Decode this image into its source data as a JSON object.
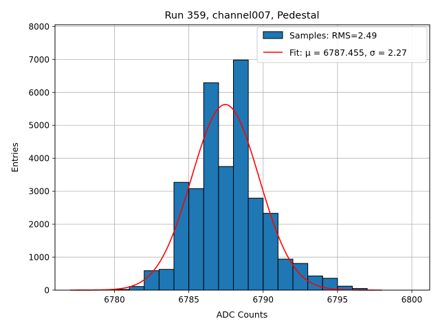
{
  "chart_data": {
    "type": "bar",
    "title": "Run 359, channel007, Pedestal",
    "xlabel": "ADC Counts",
    "ylabel": "Entries",
    "xlim": [
      6776,
      6801.2
    ],
    "ylim": [
      0,
      8050
    ],
    "xticks": [
      6780,
      6785,
      6790,
      6795,
      6800
    ],
    "yticks": [
      0,
      1000,
      2000,
      3000,
      4000,
      5000,
      6000,
      7000,
      8000
    ],
    "grid": true,
    "legend_position": "top-right",
    "histogram": {
      "name": "Samples: RMS=2.49",
      "bin_edges": [
        6780,
        6781,
        6782,
        6783,
        6784,
        6785,
        6786,
        6787,
        6788,
        6789,
        6790,
        6791,
        6792,
        6793,
        6794,
        6795,
        6796,
        6797,
        6798
      ],
      "values": [
        20,
        110,
        590,
        630,
        3270,
        3080,
        6290,
        3750,
        6980,
        2790,
        2330,
        940,
        810,
        430,
        360,
        120,
        50,
        0
      ],
      "color": "#1f77b4",
      "edge_color": "#000000"
    },
    "fit": {
      "name": "Fit: μ = 6787.455, σ = 2.27",
      "mu": 6787.455,
      "sigma": 2.27,
      "amplitude": 5630,
      "x_range": [
        6777,
        6798
      ],
      "color": "#ff0000"
    }
  }
}
